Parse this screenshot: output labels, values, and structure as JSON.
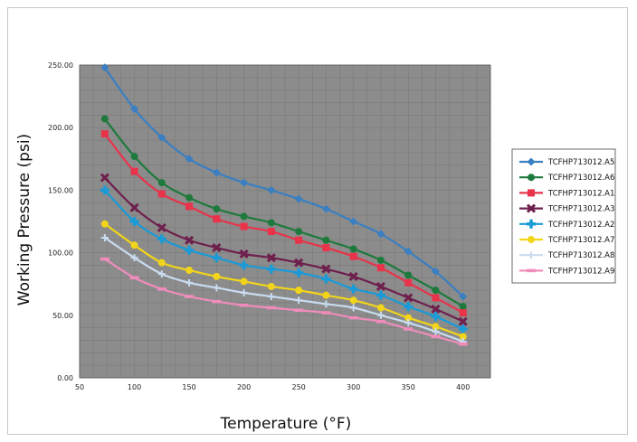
{
  "chart_data": {
    "type": "line",
    "title": "",
    "xlabel": "Temperature (°F)",
    "ylabel": "Working Pressure (psi)",
    "xlim": [
      50,
      425
    ],
    "ylim": [
      0,
      250
    ],
    "xticks": [
      "50",
      "100",
      "150",
      "200",
      "250",
      "300",
      "350",
      "400"
    ],
    "xtick_values": [
      50,
      100,
      150,
      200,
      250,
      300,
      350,
      400
    ],
    "yticks": [
      "0.00",
      "50.00",
      "100.00",
      "150.00",
      "200.00",
      "250.00"
    ],
    "ytick_values": [
      0,
      50,
      100,
      150,
      200,
      250
    ],
    "grid": true,
    "legend_position": "right",
    "x": [
      73,
      100,
      125,
      150,
      175,
      200,
      225,
      250,
      275,
      300,
      325,
      350,
      375,
      400
    ],
    "series": [
      {
        "name": "TCFHP713012.A5",
        "color": "#3a7fc1",
        "marker": "diamond",
        "values": [
          248,
          215,
          192,
          175,
          164,
          156,
          150,
          143,
          135,
          125,
          115,
          101,
          85,
          65
        ]
      },
      {
        "name": "TCFHP713012.A6",
        "color": "#1e7a3c",
        "marker": "circle",
        "values": [
          207,
          177,
          156,
          144,
          135,
          129,
          124,
          117,
          110,
          103,
          94,
          82,
          70,
          57
        ]
      },
      {
        "name": "TCFHP713012.A1",
        "color": "#e8334a",
        "marker": "square",
        "values": [
          195,
          165,
          147,
          137,
          127,
          121,
          117,
          110,
          104,
          97,
          88,
          76,
          64,
          52
        ]
      },
      {
        "name": "TCFHP713012.A3",
        "color": "#6e1f4d",
        "marker": "x",
        "values": [
          160,
          136,
          120,
          110,
          104,
          99,
          96,
          92,
          87,
          81,
          73,
          64,
          55,
          45
        ]
      },
      {
        "name": "TCFHP713012.A2",
        "color": "#1a9ad6",
        "marker": "cross",
        "values": [
          150,
          125,
          111,
          102,
          96,
          90,
          87,
          84,
          79,
          71,
          66,
          57,
          49,
          39
        ]
      },
      {
        "name": "TCFHP713012.A7",
        "color": "#f2d51a",
        "marker": "circle",
        "values": [
          123,
          106,
          92,
          86,
          81,
          77,
          73,
          70,
          66,
          62,
          56,
          48,
          41,
          33
        ]
      },
      {
        "name": "TCFHP713012.A8",
        "color": "#c9dcf0",
        "marker": "plus",
        "values": [
          112,
          96,
          83,
          76,
          72,
          68,
          65,
          62,
          59,
          56,
          50,
          44,
          37,
          29
        ]
      },
      {
        "name": "TCFHP713012.A9",
        "color": "#f08cbc",
        "marker": "dash",
        "values": [
          95,
          80,
          71,
          65,
          61,
          58,
          56,
          54,
          52,
          48,
          45,
          39,
          33,
          27
        ]
      }
    ]
  }
}
